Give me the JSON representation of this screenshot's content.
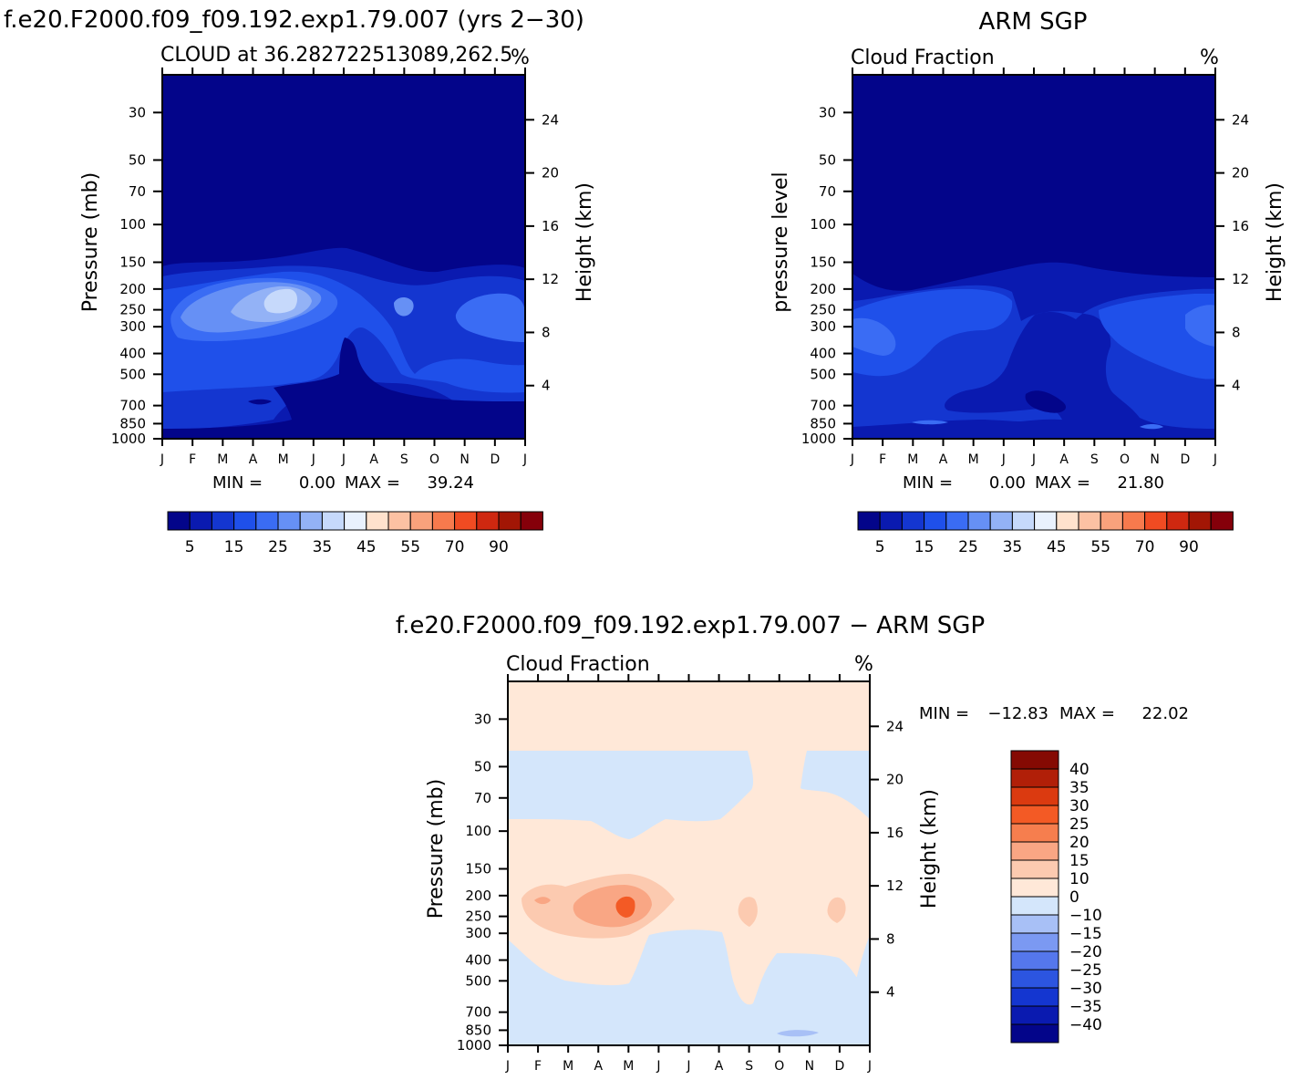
{
  "colors": {
    "seq": [
      "#03058a",
      "#0a1ab0",
      "#1436d0",
      "#1f50ea",
      "#3a6cf4",
      "#6690f5",
      "#93b2f6",
      "#c6d9fb",
      "#e9f1fd",
      "#ffe2cd",
      "#fcc1a3",
      "#f9a27c",
      "#f77a4d",
      "#f04b22",
      "#cf2810",
      "#a21605",
      "#85000a"
    ],
    "diff": [
      "#03058a",
      "#0a1ab0",
      "#1436d0",
      "#2c55e0",
      "#5577ec",
      "#7b99f2",
      "#a8c0f6",
      "#d4e6fb",
      "#ffe8d8",
      "#fccab0",
      "#f9a684",
      "#f67e4e",
      "#f35a25",
      "#db3a10",
      "#b11f08",
      "#850a03"
    ]
  },
  "chart_data": [
    {
      "id": "model",
      "type": "heatmap",
      "figure_title": "f.e20.F2000.f09_f09.192.exp1.79.007 (yrs 2−30)",
      "title": "CLOUD at 36.282722513089,262.5",
      "units": "%",
      "xlabel": "",
      "ylabel": "Pressure (mb)",
      "ylabel_right": "Height (km)",
      "x_ticks": [
        "J",
        "F",
        "M",
        "A",
        "M",
        "J",
        "J",
        "A",
        "S",
        "O",
        "N",
        "D",
        "J"
      ],
      "y_ticks": [
        "30",
        "50",
        "70",
        "100",
        "150",
        "200",
        "250",
        "300",
        "400",
        "500",
        "700",
        "850",
        "1000"
      ],
      "y_ticks_right": [
        "24",
        "20",
        "16",
        "12",
        "8",
        "4"
      ],
      "ylim": [
        1000,
        20
      ],
      "stats": {
        "min_label": "MIN =",
        "min": "0.00",
        "max_label": "MAX =",
        "max": "39.24"
      },
      "colorbar_levels": [
        "5",
        "15",
        "25",
        "35",
        "45",
        "55",
        "70",
        "90"
      ],
      "field": [
        {
          "level": 20,
          "value": 0
        },
        {
          "level": 150,
          "value": 2
        },
        {
          "level": 250,
          "value": 30,
          "peak_month": "May",
          "peak": 39.24
        },
        {
          "level": 400,
          "value": 20
        },
        {
          "level": 700,
          "value": 8
        },
        {
          "level": 1000,
          "value": 3
        }
      ]
    },
    {
      "id": "obs",
      "type": "heatmap",
      "figure_title": "ARM SGP",
      "title": "Cloud Fraction",
      "units": "%",
      "xlabel": "",
      "ylabel": "pressure level",
      "ylabel_right": "Height (km)",
      "x_ticks": [
        "J",
        "F",
        "M",
        "A",
        "M",
        "J",
        "J",
        "A",
        "S",
        "O",
        "N",
        "D",
        "J"
      ],
      "y_ticks": [
        "30",
        "50",
        "70",
        "100",
        "150",
        "200",
        "250",
        "300",
        "400",
        "500",
        "700",
        "850",
        "1000"
      ],
      "y_ticks_right": [
        "24",
        "20",
        "16",
        "12",
        "8",
        "4"
      ],
      "ylim": [
        1000,
        20
      ],
      "stats": {
        "min_label": "MIN =",
        "min": "0.00",
        "max_label": "MAX =",
        "max": "21.80"
      },
      "colorbar_levels": [
        "5",
        "15",
        "25",
        "35",
        "45",
        "55",
        "70",
        "90"
      ],
      "field": [
        {
          "level": 20,
          "value": 0
        },
        {
          "level": 150,
          "value": 3
        },
        {
          "level": 300,
          "value": 18,
          "peak_month": "Jan",
          "peak": 21.8
        },
        {
          "level": 500,
          "value": 12
        },
        {
          "level": 700,
          "value": 6
        },
        {
          "level": 1000,
          "value": 4
        }
      ]
    },
    {
      "id": "diff",
      "type": "heatmap",
      "figure_title": "f.e20.F2000.f09_f09.192.exp1.79.007 − ARM SGP",
      "title": "Cloud Fraction",
      "units": "%",
      "xlabel": "",
      "ylabel": "Pressure (mb)",
      "ylabel_right": "Height (km)",
      "x_ticks": [
        "J",
        "F",
        "M",
        "A",
        "M",
        "J",
        "J",
        "A",
        "S",
        "O",
        "N",
        "D",
        "J"
      ],
      "y_ticks": [
        "30",
        "50",
        "70",
        "100",
        "150",
        "200",
        "250",
        "300",
        "400",
        "500",
        "700",
        "850",
        "1000"
      ],
      "y_ticks_right": [
        "24",
        "20",
        "16",
        "12",
        "8",
        "4"
      ],
      "ylim": [
        1000,
        20
      ],
      "stats": {
        "min_label": "MIN =",
        "min": "−12.83",
        "max_label": "MAX =",
        "max": "22.02"
      },
      "colorbar_levels": [
        "40",
        "35",
        "30",
        "25",
        "20",
        "15",
        "10",
        "0",
        "−10",
        "−15",
        "−20",
        "−25",
        "−30",
        "−35",
        "−40"
      ],
      "field": [
        {
          "level": 20,
          "value": 2
        },
        {
          "level": 70,
          "value": -3
        },
        {
          "level": 250,
          "value": 12,
          "peak_month": "May",
          "peak": 22.02
        },
        {
          "level": 700,
          "value": -4
        },
        {
          "level": 1000,
          "value": -12.83
        }
      ]
    }
  ]
}
